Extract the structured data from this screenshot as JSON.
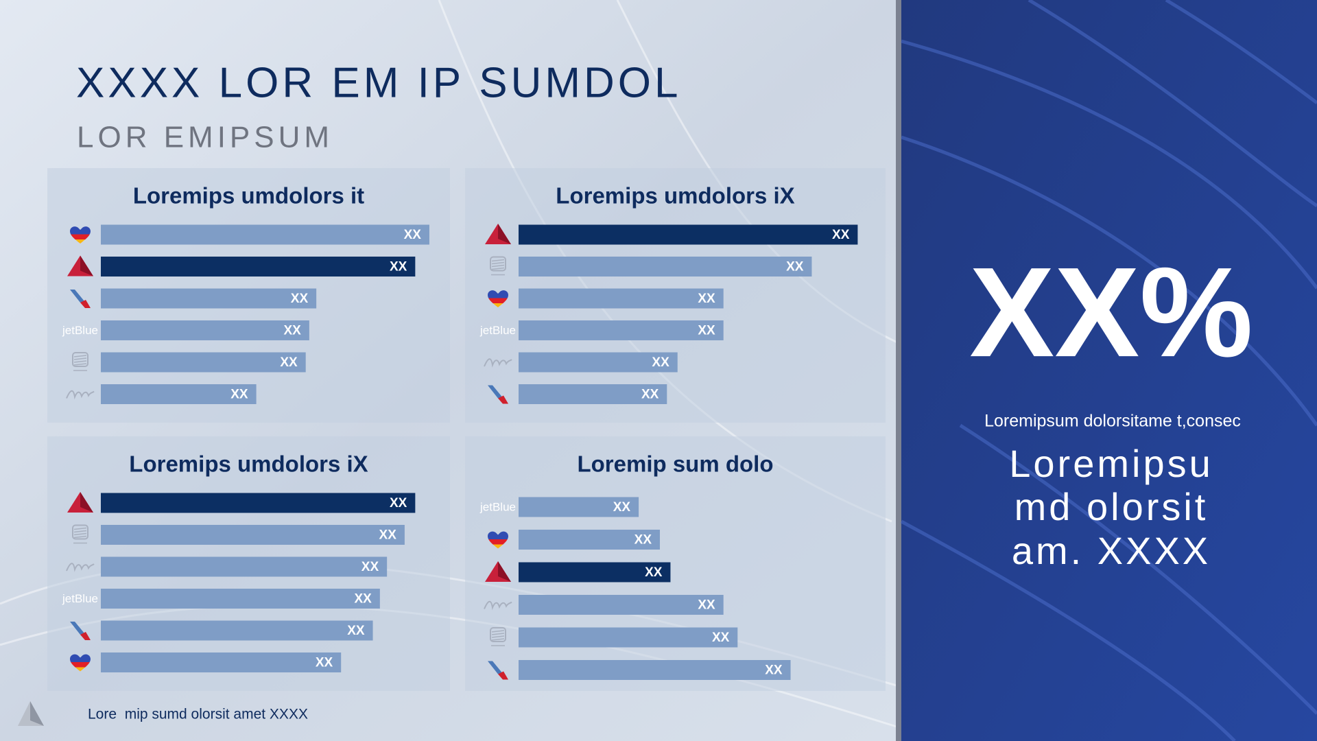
{
  "header": {
    "title": "XXXX LOR EM IP SUMDOL",
    "subtitle": "LOR EMIPSUM"
  },
  "chart_data": [
    {
      "type": "bar",
      "title": "Loremips umdolors it",
      "categories": [
        null,
        null,
        null,
        "jetBlue",
        null,
        null
      ],
      "values": [
        93,
        89,
        61,
        59,
        58,
        44
      ],
      "value_labels": [
        "XX",
        "XX",
        "XX",
        "XX",
        "XX",
        "XX"
      ],
      "colors": [
        "#7f9dc6",
        "#0c2f63",
        "#7f9dc6",
        "#7f9dc6",
        "#7f9dc6",
        "#7f9dc6"
      ]
    },
    {
      "type": "bar",
      "title": "Loremips umdolors iX",
      "categories": [
        null,
        null,
        null,
        "jetBlue",
        null,
        null
      ],
      "values": [
        96,
        83,
        58,
        58,
        45,
        42
      ],
      "value_labels": [
        "XX",
        "XX",
        "XX",
        "XX",
        "XX",
        "XX"
      ],
      "colors": [
        "#0c2f63",
        "#7f9dc6",
        "#7f9dc6",
        "#7f9dc6",
        "#7f9dc6",
        "#7f9dc6"
      ]
    },
    {
      "type": "bar",
      "title": "Loremips umdolors iX",
      "categories": [
        null,
        null,
        null,
        "jetBlue",
        null,
        null
      ],
      "values": [
        89,
        86,
        81,
        79,
        77,
        68
      ],
      "value_labels": [
        "XX",
        "XX",
        "XX",
        "XX",
        "XX",
        "XX"
      ],
      "colors": [
        "#0c2f63",
        "#7f9dc6",
        "#7f9dc6",
        "#7f9dc6",
        "#7f9dc6",
        "#7f9dc6"
      ]
    },
    {
      "type": "bar",
      "title": "Loremip sum dolo",
      "categories": [
        "jetBlue",
        null,
        null,
        null,
        null,
        null
      ],
      "values": [
        34,
        40,
        43,
        58,
        62,
        77
      ],
      "value_labels": [
        "XX",
        "XX",
        "XX",
        "XX",
        "XX",
        "XX"
      ],
      "colors": [
        "#7f9dc6",
        "#7f9dc6",
        "#0c2f63",
        "#7f9dc6",
        "#7f9dc6",
        "#7f9dc6"
      ]
    }
  ],
  "callout": {
    "value": "XX%",
    "caption": "Loremipsum dolorsitame t,consec",
    "lines": [
      "Loremipsu",
      "md olorsit",
      "am. XXXX"
    ]
  },
  "footer": {
    "note": "Lore  mip sumd olorsit amet XXXX"
  }
}
